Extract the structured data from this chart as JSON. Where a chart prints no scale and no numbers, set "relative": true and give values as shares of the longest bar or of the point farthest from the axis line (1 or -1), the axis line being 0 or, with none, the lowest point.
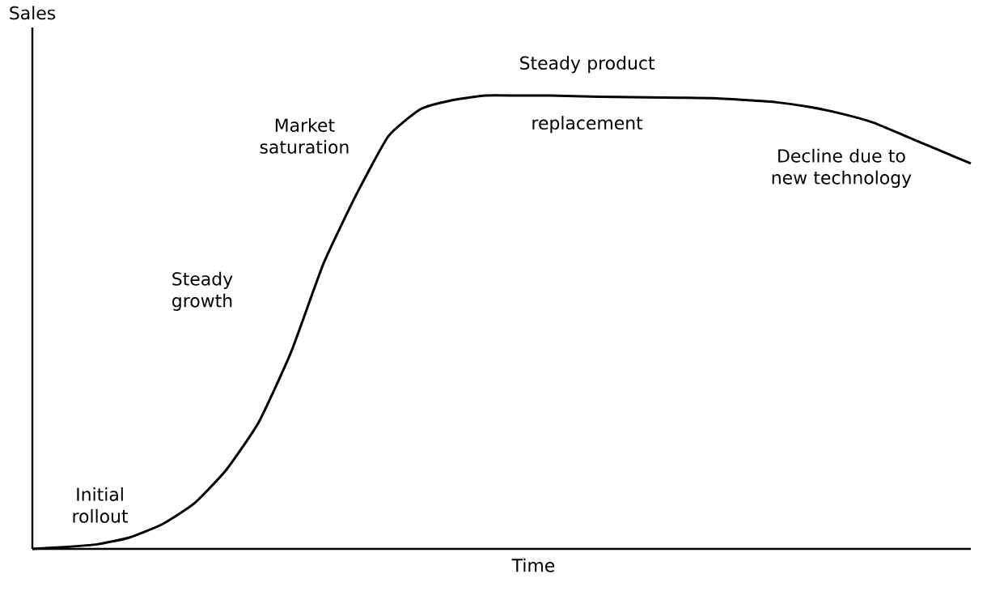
{
  "chart_data": {
    "type": "line",
    "relative": true,
    "xlabel": "Time",
    "ylabel": "Sales",
    "color": "#000000",
    "categories": [
      null,
      null,
      null,
      null,
      null,
      null,
      null,
      null,
      null,
      null,
      null,
      null,
      null,
      null,
      null,
      null,
      null,
      null,
      null,
      null,
      null,
      null,
      null,
      null,
      null,
      null,
      null,
      null,
      null,
      null
    ],
    "values": [
      0,
      0.004,
      0.01,
      0.025,
      0.054,
      0.1,
      0.175,
      0.28,
      0.435,
      0.63,
      0.78,
      0.91,
      0.97,
      0.99,
      1,
      1,
      1,
      0.998,
      0.997,
      0.996,
      0.995,
      0.994,
      0.99,
      0.985,
      0.975,
      0.96,
      0.94,
      0.91,
      0.88,
      0.85
    ],
    "annotations": [
      "Initial rollout",
      "Steady growth",
      "Market saturation",
      "Steady product",
      "replacement",
      "Decline due to new technology"
    ]
  }
}
